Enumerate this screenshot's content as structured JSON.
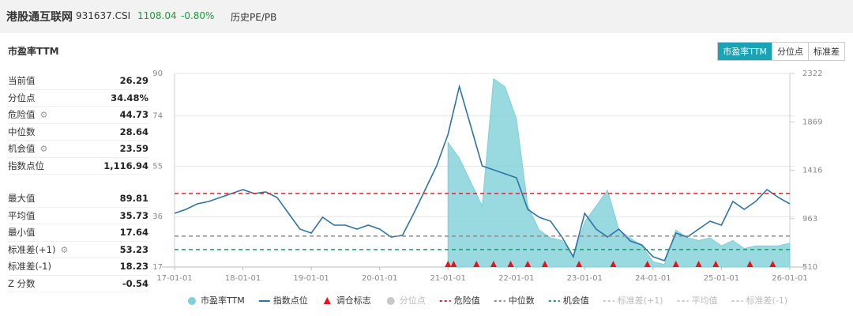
{
  "header": {
    "title": "港股通互联网",
    "code": "931637.CSI",
    "price": "1108.04",
    "change": "-0.80%",
    "tab": "历史PE/PB"
  },
  "section": {
    "title": "市盈率TTM",
    "buttons": [
      "市盈率TTM",
      "分位点",
      "标准差"
    ],
    "active_button": 0
  },
  "stats": {
    "groups": [
      [
        {
          "label": "当前值",
          "value": "26.29"
        },
        {
          "label": "分位点",
          "value": "34.48%"
        },
        {
          "label": "危险值",
          "value": "44.73",
          "gear": true
        },
        {
          "label": "中位数",
          "value": "28.64"
        },
        {
          "label": "机会值",
          "value": "23.59",
          "gear": true
        },
        {
          "label": "指数点位",
          "value": "1,116.94"
        }
      ],
      [
        {
          "label": "最大值",
          "value": "89.81"
        },
        {
          "label": "平均值",
          "value": "35.73"
        },
        {
          "label": "最小值",
          "value": "17.64"
        },
        {
          "label": "标准差(+1)",
          "value": "53.23",
          "gear": true
        },
        {
          "label": "标准差(-1)",
          "value": "18.23"
        },
        {
          "label": "Z 分数",
          "value": "-0.54"
        }
      ]
    ]
  },
  "chart_data": {
    "type": "line",
    "x": [
      "17-01-01",
      "17-03-01",
      "17-05-01",
      "17-07-01",
      "17-09-01",
      "17-11-01",
      "18-01-01",
      "18-03-01",
      "18-05-01",
      "18-07-01",
      "18-09-01",
      "18-11-01",
      "19-01-01",
      "19-03-01",
      "19-05-01",
      "19-07-01",
      "19-09-01",
      "19-11-01",
      "20-01-01",
      "20-03-01",
      "20-05-01",
      "20-07-01",
      "20-09-01",
      "20-11-01",
      "21-01-01",
      "21-03-01",
      "21-05-01",
      "21-07-01",
      "21-09-01",
      "21-11-01",
      "22-01-01",
      "22-03-01",
      "22-05-01",
      "22-07-01",
      "22-09-01",
      "22-11-01",
      "23-01-01",
      "23-03-01",
      "23-05-01",
      "23-07-01",
      "23-09-01",
      "23-11-01",
      "24-01-01",
      "24-03-01",
      "24-05-01",
      "24-07-01",
      "24-09-01",
      "24-11-01",
      "25-01-01",
      "25-03-01",
      "25-05-01",
      "25-07-01",
      "25-09-01",
      "25-11-01",
      "26-01-01"
    ],
    "series": [
      {
        "name": "市盈率TTM",
        "kind": "area",
        "color": "#7fd0d8",
        "values": [
          null,
          null,
          null,
          null,
          null,
          null,
          null,
          null,
          null,
          null,
          null,
          null,
          null,
          null,
          null,
          null,
          null,
          null,
          null,
          null,
          null,
          null,
          null,
          null,
          64,
          58,
          49,
          40,
          88,
          85,
          73,
          40,
          31,
          28,
          27,
          21,
          34,
          40,
          46,
          31,
          28,
          25,
          19,
          18,
          31,
          28,
          27,
          28,
          25,
          27,
          24,
          25,
          25,
          25,
          26
        ]
      },
      {
        "name": "指数点位",
        "kind": "line",
        "axis": "y2",
        "color": "#2f74a3",
        "values": [
          1013,
          1050,
          1102,
          1124,
          1161,
          1198,
          1235,
          1198,
          1213,
          1161,
          1013,
          865,
          828,
          976,
          902,
          902,
          865,
          902,
          865,
          791,
          806,
          1013,
          1235,
          1457,
          1752,
          2200,
          1827,
          1457,
          1420,
          1383,
          1346,
          1050,
          976,
          939,
          791,
          606,
          1013,
          865,
          791,
          865,
          754,
          717,
          606,
          569,
          828,
          791,
          865,
          939,
          902,
          1124,
          1050,
          1124,
          1235,
          1161,
          1102
        ]
      }
    ],
    "markers": {
      "name": "调仓标志",
      "color": "#e5141b",
      "x": [
        "21-01-01",
        "21-02-01",
        "21-06-01",
        "21-09-01",
        "21-12-01",
        "22-03-01",
        "22-06-01",
        "22-12-01",
        "23-06-01",
        "23-12-01",
        "24-05-01",
        "24-09-01",
        "24-12-01",
        "25-06-01",
        "25-10-01"
      ]
    },
    "ref_lines": [
      {
        "name": "分位点",
        "color": "#c8c8c8",
        "active": false
      },
      {
        "name": "危险值",
        "color": "#d9262c",
        "value": 44.73,
        "active": true
      },
      {
        "name": "中位数",
        "color": "#8c8c8c",
        "value": 28.64,
        "active": true
      },
      {
        "name": "机会值",
        "color": "#1a9a6c",
        "value": 23.59,
        "active": true
      },
      {
        "name": "标准差(+1)",
        "color": "#c8c8c8",
        "active": false
      },
      {
        "name": "平均值",
        "color": "#c8c8c8",
        "active": false
      },
      {
        "name": "标准差(-1)",
        "color": "#c8c8c8",
        "active": false
      }
    ],
    "xlim": [
      "17-01-01",
      "26-01-01"
    ],
    "xticks": [
      "17-01-01",
      "18-01-01",
      "19-01-01",
      "20-01-01",
      "21-01-01",
      "22-01-01",
      "23-01-01",
      "24-01-01",
      "25-01-01",
      "26-01-01"
    ],
    "ylim": [
      17,
      90
    ],
    "yticks": [
      17,
      36,
      55,
      74,
      90
    ],
    "y2lim": [
      510,
      2322
    ],
    "y2ticks": [
      510,
      963,
      1416,
      1869,
      2322
    ],
    "grid": true
  }
}
